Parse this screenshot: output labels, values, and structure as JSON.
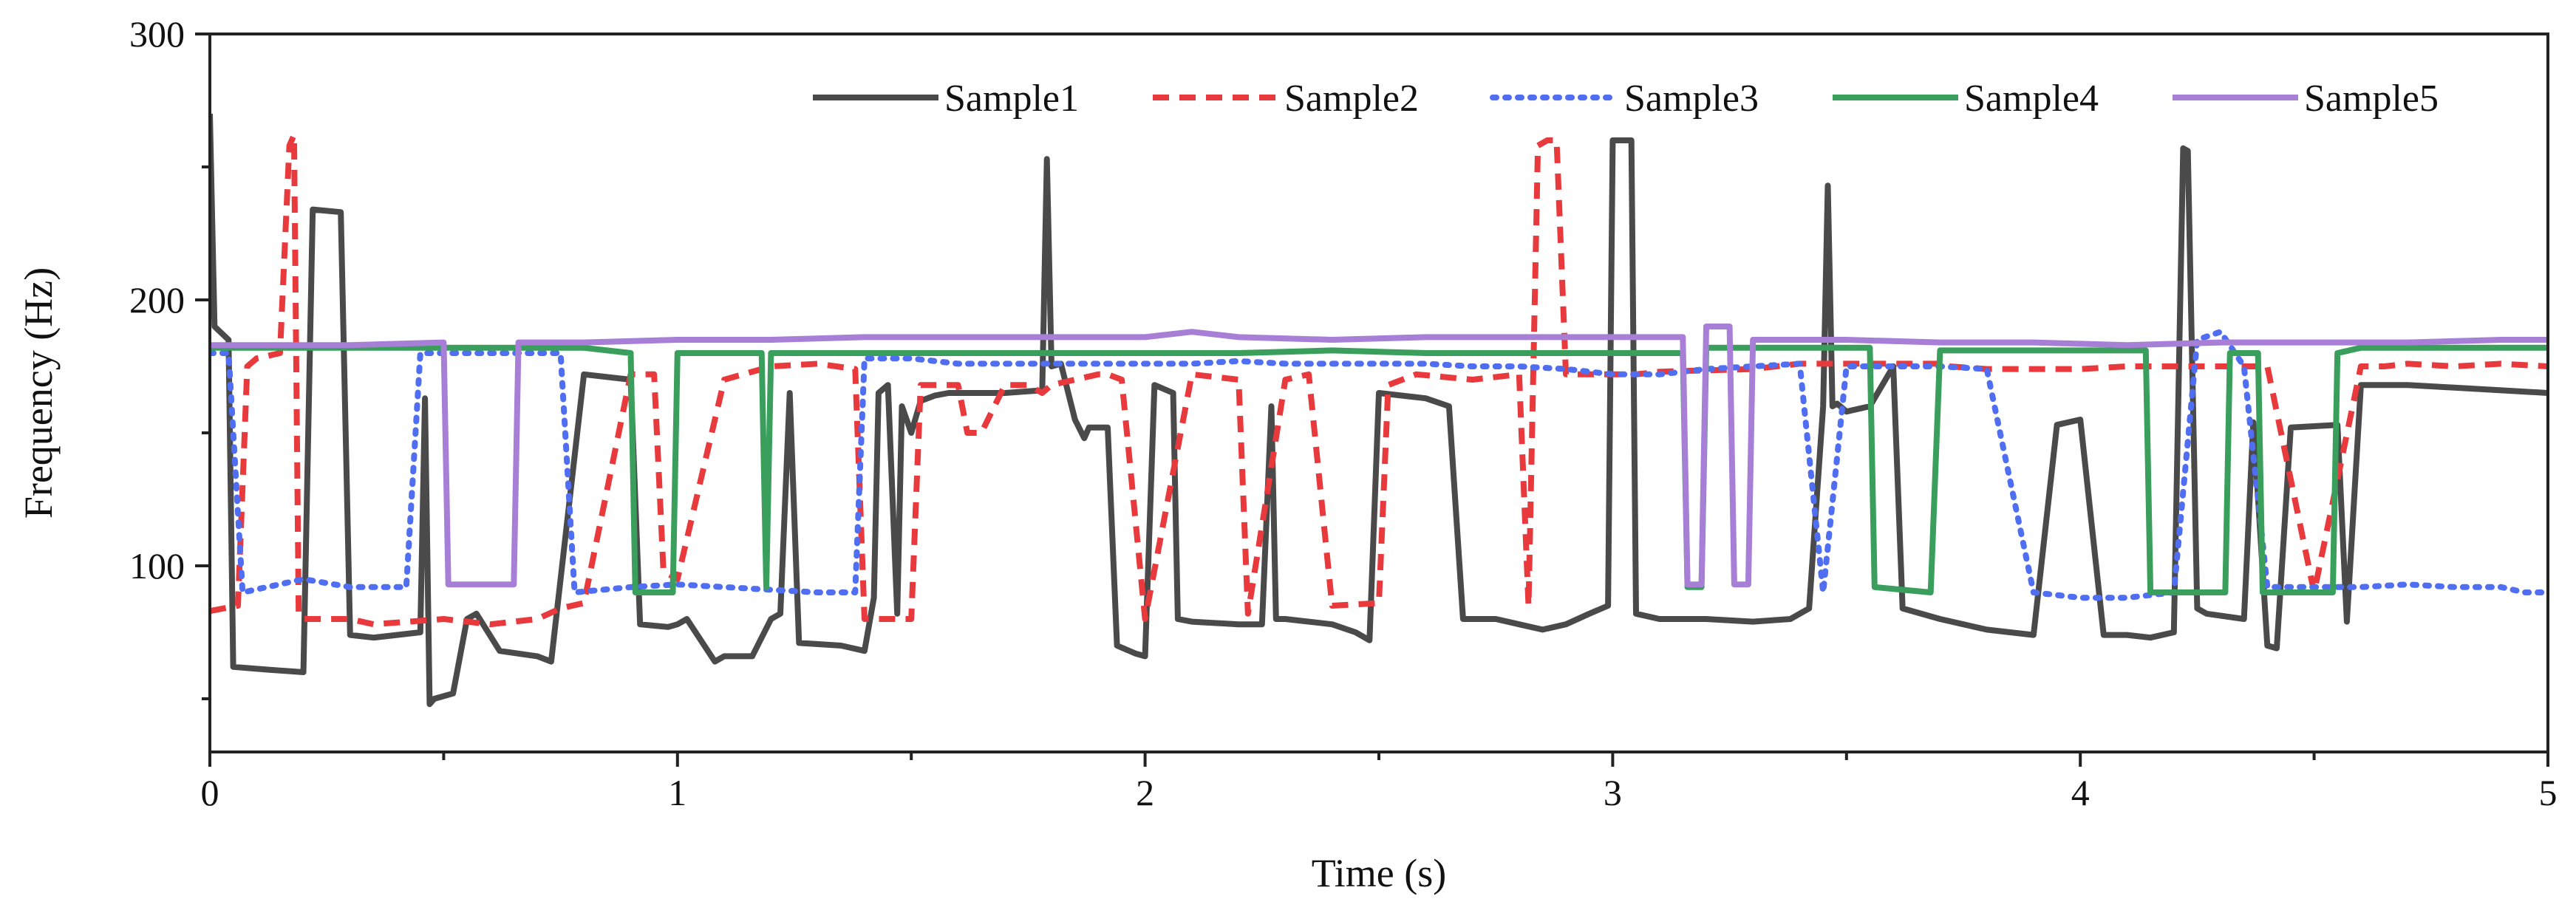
{
  "chart_data": {
    "type": "line",
    "title": "",
    "xlabel": "Time (s)",
    "ylabel": "Frequency (Hz)",
    "xlim": [
      0,
      5
    ],
    "ylim": [
      30,
      300
    ],
    "xticks": [
      0,
      1,
      2,
      3,
      4,
      5
    ],
    "xtick_labels": [
      "0",
      "1",
      "2",
      "3",
      "4",
      "5"
    ],
    "yticks": [
      100,
      200,
      300
    ],
    "ytick_labels": [
      "100",
      "200",
      "300"
    ],
    "grid": false,
    "legend_position": "top-right",
    "series": [
      {
        "name": "Sample1",
        "color": "#4a4a4a",
        "dash": "solid",
        "x": [
          0,
          0.01,
          0.04,
          0.05,
          0.12,
          0.2,
          0.22,
          0.28,
          0.3,
          0.35,
          0.45,
          0.46,
          0.47,
          0.48,
          0.52,
          0.55,
          0.57,
          0.62,
          0.7,
          0.73,
          0.8,
          0.9,
          0.92,
          0.98,
          1.0,
          1.02,
          1.08,
          1.1,
          1.16,
          1.2,
          1.22,
          1.24,
          1.26,
          1.35,
          1.4,
          1.42,
          1.43,
          1.45,
          1.47,
          1.48,
          1.5,
          1.52,
          1.55,
          1.58,
          1.62,
          1.7,
          1.78,
          1.79,
          1.8,
          1.82,
          1.85,
          1.87,
          1.88,
          1.92,
          1.94,
          1.98,
          2.0,
          2.02,
          2.06,
          2.07,
          2.1,
          2.2,
          2.25,
          2.27,
          2.28,
          2.3,
          2.4,
          2.45,
          2.48,
          2.5,
          2.6,
          2.65,
          2.68,
          2.75,
          2.8,
          2.85,
          2.9,
          2.95,
          2.99,
          3.0,
          3.04,
          3.05,
          3.1,
          3.2,
          3.3,
          3.38,
          3.42,
          3.45,
          3.46,
          3.47,
          3.48,
          3.5,
          3.55,
          3.6,
          3.62,
          3.7,
          3.75,
          3.8,
          3.85,
          3.9,
          3.95,
          4.0,
          4.05,
          4.1,
          4.15,
          4.2,
          4.22,
          4.23,
          4.25,
          4.27,
          4.35,
          4.37,
          4.4,
          4.42,
          4.45,
          4.55,
          4.57,
          4.6,
          4.7,
          4.8,
          4.9,
          5.0
        ],
        "values": [
          270,
          190,
          185,
          62,
          61,
          60,
          234,
          233,
          74,
          73,
          75,
          163,
          48,
          50,
          52,
          80,
          82,
          68,
          66,
          64,
          172,
          170,
          78,
          77,
          78,
          80,
          64,
          66,
          66,
          80,
          82,
          165,
          71,
          70,
          68,
          88,
          165,
          168,
          82,
          160,
          150,
          162,
          164,
          165,
          165,
          165,
          166,
          253,
          175,
          176,
          155,
          148,
          152,
          152,
          70,
          67,
          66,
          168,
          165,
          80,
          79,
          78,
          78,
          160,
          80,
          80,
          78,
          75,
          72,
          165,
          163,
          160,
          80,
          80,
          78,
          76,
          78,
          82,
          85,
          260,
          260,
          82,
          80,
          80,
          79,
          80,
          84,
          160,
          243,
          160,
          161,
          158,
          160,
          175,
          84,
          80,
          78,
          76,
          75,
          74,
          153,
          155,
          74,
          74,
          73,
          75,
          257,
          256,
          84,
          82,
          80,
          154,
          70,
          69,
          152,
          153,
          79,
          168,
          168,
          167,
          166,
          165
        ]
      },
      {
        "name": "Sample2",
        "color": "#e8393c",
        "dash": "dashed",
        "x": [
          0,
          0.06,
          0.08,
          0.1,
          0.15,
          0.17,
          0.18,
          0.19,
          0.2,
          0.3,
          0.35,
          0.5,
          0.6,
          0.7,
          0.75,
          0.8,
          0.9,
          0.95,
          0.97,
          1.0,
          1.1,
          1.2,
          1.3,
          1.38,
          1.4,
          1.42,
          1.5,
          1.52,
          1.6,
          1.62,
          1.65,
          1.7,
          1.75,
          1.78,
          1.8,
          1.85,
          1.9,
          1.92,
          1.95,
          2.0,
          2.1,
          2.2,
          2.22,
          2.3,
          2.35,
          2.4,
          2.5,
          2.52,
          2.55,
          2.58,
          2.7,
          2.8,
          2.82,
          2.84,
          2.86,
          2.88,
          2.9,
          2.95,
          3.0,
          3.05,
          3.1,
          3.3,
          3.4,
          3.5,
          3.6,
          3.7,
          3.72,
          3.8,
          3.9,
          4.0,
          4.1,
          4.2,
          4.25,
          4.3,
          4.4,
          4.5,
          4.6,
          4.65,
          4.7,
          4.8,
          4.9,
          5.0
        ],
        "values": [
          83,
          85,
          175,
          178,
          180,
          258,
          262,
          82,
          80,
          80,
          78,
          80,
          78,
          80,
          84,
          86,
          172,
          172,
          98,
          95,
          170,
          175,
          176,
          174,
          80,
          80,
          80,
          168,
          168,
          150,
          150,
          168,
          168,
          165,
          168,
          170,
          172,
          172,
          170,
          80,
          172,
          170,
          82,
          170,
          172,
          85,
          86,
          168,
          170,
          172,
          170,
          172,
          85,
          258,
          260,
          260,
          172,
          172,
          172,
          172,
          173,
          174,
          176,
          176,
          176,
          176,
          175,
          174,
          174,
          174,
          175,
          175,
          175,
          175,
          175,
          90,
          175,
          175,
          176,
          175,
          176,
          175
        ]
      },
      {
        "name": "Sample3",
        "color": "#4f6ef2",
        "dash": "dotted",
        "x": [
          0,
          0.04,
          0.07,
          0.2,
          0.3,
          0.42,
          0.45,
          0.6,
          0.75,
          0.78,
          0.9,
          1.0,
          1.1,
          1.2,
          1.3,
          1.38,
          1.4,
          1.5,
          1.6,
          1.7,
          1.8,
          1.9,
          2.0,
          2.1,
          2.2,
          2.3,
          2.4,
          2.5,
          2.6,
          2.7,
          2.8,
          2.9,
          3.0,
          3.1,
          3.2,
          3.3,
          3.4,
          3.45,
          3.5,
          3.6,
          3.7,
          3.8,
          3.9,
          4.0,
          4.1,
          4.2,
          4.25,
          4.3,
          4.35,
          4.4,
          4.5,
          4.6,
          4.7,
          4.8,
          4.9,
          4.95,
          5.0
        ],
        "values": [
          180,
          180,
          90,
          95,
          92,
          92,
          180,
          180,
          180,
          90,
          92,
          93,
          92,
          91,
          90,
          90,
          178,
          178,
          176,
          176,
          176,
          176,
          176,
          176,
          177,
          176,
          176,
          176,
          176,
          175,
          175,
          174,
          172,
          172,
          174,
          175,
          176,
          90,
          175,
          175,
          175,
          174,
          90,
          88,
          88,
          90,
          185,
          188,
          175,
          92,
          92,
          92,
          93,
          92,
          92,
          90,
          90
        ]
      },
      {
        "name": "Sample4",
        "color": "#3a9e5c",
        "dash": "solid",
        "x": [
          0,
          0.3,
          0.6,
          0.8,
          0.9,
          0.91,
          0.99,
          1.0,
          1.18,
          1.19,
          1.2,
          1.4,
          1.6,
          1.8,
          2.0,
          2.2,
          2.4,
          2.6,
          2.8,
          3.0,
          3.15,
          3.16,
          3.19,
          3.2,
          3.3,
          3.5,
          3.55,
          3.56,
          3.68,
          3.7,
          4.0,
          4.14,
          4.15,
          4.3,
          4.31,
          4.32,
          4.38,
          4.39,
          4.4,
          4.54,
          4.55,
          4.6,
          4.8,
          5.0
        ],
        "values": [
          182,
          182,
          182,
          182,
          180,
          90,
          90,
          180,
          180,
          92,
          180,
          180,
          180,
          180,
          180,
          180,
          181,
          180,
          180,
          180,
          180,
          92,
          92,
          182,
          182,
          182,
          182,
          92,
          90,
          181,
          181,
          181,
          90,
          90,
          90,
          180,
          180,
          90,
          90,
          90,
          180,
          182,
          182,
          182
        ]
      },
      {
        "name": "Sample5",
        "color": "#a87fd6",
        "dash": "solid",
        "x": [
          0,
          0.3,
          0.5,
          0.51,
          0.55,
          0.65,
          0.66,
          0.8,
          1.0,
          1.2,
          1.4,
          1.6,
          1.8,
          2.0,
          2.1,
          2.2,
          2.4,
          2.6,
          2.8,
          3.0,
          3.15,
          3.16,
          3.19,
          3.2,
          3.25,
          3.26,
          3.29,
          3.3,
          3.5,
          3.7,
          3.9,
          4.1,
          4.3,
          4.5,
          4.7,
          4.9,
          5.0
        ],
        "values": [
          183,
          183,
          184,
          93,
          93,
          93,
          184,
          184,
          185,
          185,
          186,
          186,
          186,
          186,
          188,
          186,
          185,
          186,
          186,
          186,
          186,
          93,
          93,
          190,
          190,
          93,
          93,
          185,
          185,
          184,
          184,
          183,
          184,
          184,
          184,
          185,
          185
        ]
      }
    ]
  }
}
